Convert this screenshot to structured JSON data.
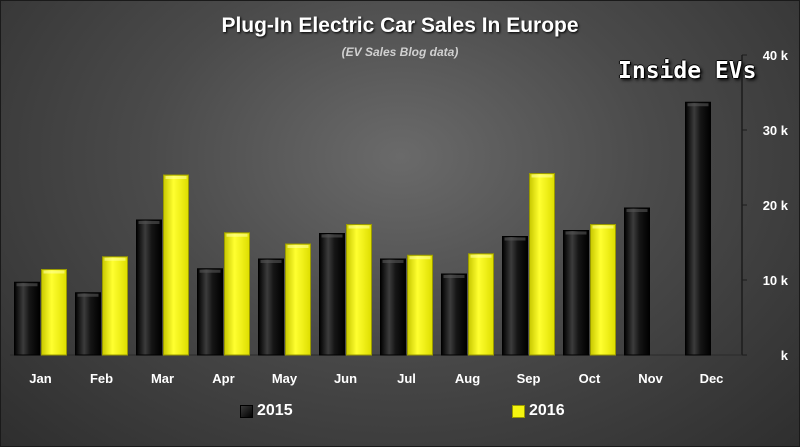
{
  "header": {
    "title": "Plug-In Electric Car Sales In Europe",
    "subtitle": "(EV Sales Blog data)",
    "watermark": "Inside EVs"
  },
  "colors": {
    "series_2015": "#111111",
    "series_2016": "#f5f510",
    "axis_text": "#ffffff",
    "grid": "#5a5a5a"
  },
  "chart_data": {
    "type": "bar",
    "title": "Plug-In Electric Car Sales In Europe",
    "subtitle": "(EV Sales Blog data)",
    "categories": [
      "Jan",
      "Feb",
      "Mar",
      "Apr",
      "May",
      "Jun",
      "Jul",
      "Aug",
      "Sep",
      "Oct",
      "Nov",
      "Dec"
    ],
    "series": [
      {
        "name": "2015",
        "values": [
          9.7,
          8.3,
          18.0,
          11.5,
          12.8,
          16.2,
          12.8,
          10.8,
          15.8,
          16.6,
          19.6,
          33.7
        ]
      },
      {
        "name": "2016",
        "values": [
          11.4,
          13.1,
          24.0,
          16.3,
          14.8,
          17.4,
          13.3,
          13.5,
          24.2,
          17.4,
          null,
          null
        ]
      }
    ],
    "y_ticks": [
      "k",
      "10 k",
      "20 k",
      "30 k",
      "40 k"
    ],
    "ylim": [
      0,
      40
    ],
    "y_axis_side": "right",
    "grid": false,
    "legend": "bottom"
  }
}
